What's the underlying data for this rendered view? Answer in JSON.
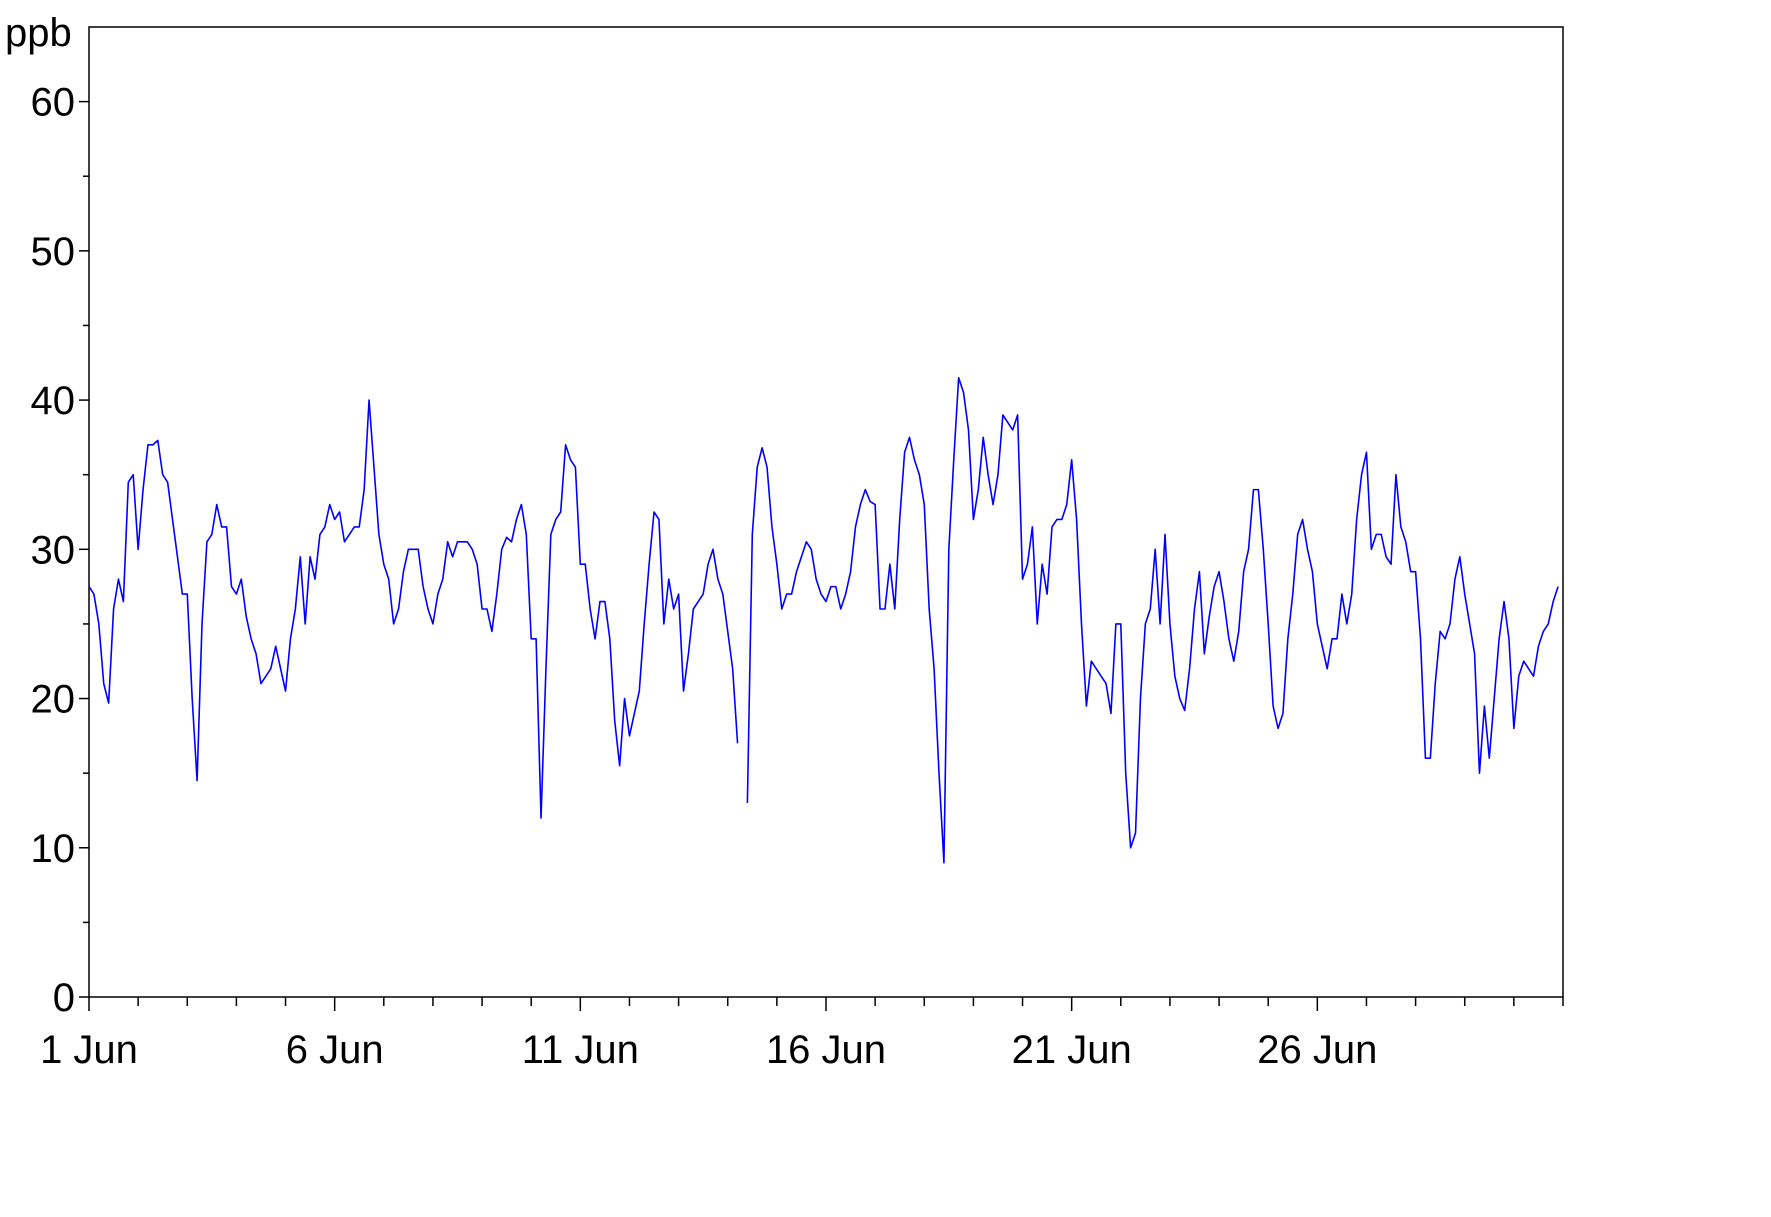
{
  "chart_data": {
    "type": "line",
    "y_label": "ppb",
    "xlim": [
      1,
      31
    ],
    "ylim": [
      0,
      65
    ],
    "xticks": [
      {
        "value": 1,
        "label": "1 Jun"
      },
      {
        "value": 6,
        "label": "6 Jun"
      },
      {
        "value": 11,
        "label": "11 Jun"
      },
      {
        "value": 16,
        "label": "16 Jun"
      },
      {
        "value": 21,
        "label": "21 Jun"
      },
      {
        "value": 26,
        "label": "26 Jun"
      }
    ],
    "x_minor_ticks": [
      2,
      3,
      4,
      5,
      7,
      8,
      9,
      10,
      12,
      13,
      14,
      15,
      17,
      18,
      19,
      20,
      22,
      23,
      24,
      25,
      27,
      28,
      29,
      30,
      31
    ],
    "yticks": [
      0,
      10,
      20,
      30,
      40,
      50,
      60
    ],
    "y_minor_ticks": [
      5,
      15,
      25,
      35,
      45,
      55
    ],
    "grid": false,
    "x": [
      1,
      1.1,
      1.2,
      1.3,
      1.4,
      1.5,
      1.6,
      1.7,
      1.8,
      1.9,
      2,
      2.1,
      2.2,
      2.3,
      2.4,
      2.5,
      2.6,
      2.7,
      2.8,
      2.9,
      3,
      3.1,
      3.2,
      3.3,
      3.4,
      3.5,
      3.6,
      3.7,
      3.8,
      3.9,
      4,
      4.1,
      4.2,
      4.3,
      4.4,
      4.5,
      4.6,
      4.7,
      4.8,
      4.9,
      5,
      5.1,
      5.2,
      5.3,
      5.4,
      5.5,
      5.6,
      5.7,
      5.8,
      5.9,
      6,
      6.1,
      6.2,
      6.3,
      6.4,
      6.5,
      6.6,
      6.7,
      6.8,
      6.9,
      7,
      7.1,
      7.2,
      7.3,
      7.4,
      7.5,
      7.6,
      7.7,
      7.8,
      7.9,
      8,
      8.1,
      8.2,
      8.3,
      8.4,
      8.5,
      8.6,
      8.7,
      8.8,
      8.9,
      9,
      9.1,
      9.2,
      9.3,
      9.4,
      9.5,
      9.6,
      9.7,
      9.8,
      9.9,
      10,
      10.1,
      10.2,
      10.3,
      10.4,
      10.5,
      10.6,
      10.7,
      10.8,
      10.9,
      11,
      11.1,
      11.2,
      11.3,
      11.4,
      11.5,
      11.6,
      11.7,
      11.8,
      11.9,
      12,
      12.1,
      12.2,
      12.3,
      12.4,
      12.5,
      12.6,
      12.7,
      12.8,
      12.9,
      13,
      13.1,
      13.2,
      13.3,
      13.4,
      13.5,
      13.6,
      13.7,
      13.8,
      13.9,
      14,
      14.1,
      14.2,
      14.3,
      14.4,
      14.5,
      14.6,
      14.7,
      14.8,
      14.9,
      15,
      15.1,
      15.2,
      15.3,
      15.4,
      15.5,
      15.6,
      15.7,
      15.8,
      15.9,
      16,
      16.1,
      16.2,
      16.3,
      16.4,
      16.5,
      16.6,
      16.7,
      16.8,
      16.9,
      17,
      17.1,
      17.2,
      17.3,
      17.4,
      17.5,
      17.6,
      17.7,
      17.8,
      17.9,
      18,
      18.1,
      18.2,
      18.3,
      18.4,
      18.5,
      18.6,
      18.7,
      18.8,
      18.9,
      19,
      19.1,
      19.2,
      19.3,
      19.4,
      19.5,
      19.6,
      19.7,
      19.8,
      19.9,
      20,
      20.1,
      20.2,
      20.3,
      20.4,
      20.5,
      20.6,
      20.7,
      20.8,
      20.9,
      21,
      21.1,
      21.2,
      21.3,
      21.4,
      21.5,
      21.6,
      21.7,
      21.8,
      21.9,
      22,
      22.1,
      22.2,
      22.3,
      22.4,
      22.5,
      22.6,
      22.7,
      22.8,
      22.9,
      23,
      23.1,
      23.2,
      23.3,
      23.4,
      23.5,
      23.6,
      23.7,
      23.8,
      23.9,
      24,
      24.1,
      24.2,
      24.3,
      24.4,
      24.5,
      24.6,
      24.7,
      24.8,
      24.9,
      25,
      25.1,
      25.2,
      25.3,
      25.4,
      25.5,
      25.6,
      25.7,
      25.8,
      25.9,
      26,
      26.1,
      26.2,
      26.3,
      26.4,
      26.5,
      26.6,
      26.7,
      26.8,
      26.9,
      27,
      27.1,
      27.2,
      27.3,
      27.4,
      27.5,
      27.6,
      27.7,
      27.8,
      27.9,
      28,
      28.1,
      28.2,
      28.3,
      28.4,
      28.5,
      28.6,
      28.7,
      28.8,
      28.9,
      29,
      29.1,
      29.2,
      29.3,
      29.4,
      29.5,
      29.6,
      29.7,
      29.8,
      29.9,
      30,
      30.1,
      30.2,
      30.3,
      30.4,
      30.5,
      30.6,
      30.7,
      30.8,
      30.9
    ],
    "series": [
      {
        "color": "#0000ff",
        "values": [
          27.5,
          27,
          25,
          21,
          19.7,
          26,
          28,
          26.5,
          34.5,
          35,
          30,
          34,
          37,
          37,
          37.3,
          35,
          34.5,
          32,
          29.5,
          27,
          27,
          20,
          14.5,
          25,
          30.5,
          31,
          33,
          31.5,
          31.5,
          27.5,
          27,
          28,
          25.5,
          24,
          23,
          21,
          21.5,
          22,
          23.5,
          22,
          20.5,
          24,
          26,
          29.5,
          25,
          29.5,
          28,
          31,
          31.5,
          33,
          32,
          32.5,
          30.5,
          31,
          31.5,
          31.5,
          34,
          40,
          35.5,
          31,
          29,
          28,
          25,
          26,
          28.5,
          30,
          30,
          30,
          27.5,
          26,
          25,
          27,
          28,
          30.5,
          29.5,
          30.5,
          30.5,
          30.5,
          30,
          29,
          26,
          26,
          24.5,
          27,
          30,
          30.8,
          30.5,
          32,
          33,
          31,
          24,
          24,
          12,
          22,
          31,
          32,
          32.5,
          37,
          36,
          35.5,
          29,
          29,
          26,
          24,
          26.5,
          26.5,
          24,
          18.5,
          15.5,
          20,
          17.5,
          19,
          20.5,
          25,
          29,
          32.5,
          32,
          25,
          28,
          26,
          27,
          20.5,
          23,
          26,
          26.5,
          27,
          29,
          30,
          28,
          27,
          24.5,
          22,
          17,
          null,
          13,
          31,
          35.5,
          36.8,
          35.5,
          31.5,
          29,
          26,
          27,
          27,
          28.5,
          29.5,
          30.5,
          30,
          28,
          27,
          26.5,
          27.5,
          27.5,
          26,
          27,
          28.5,
          31.5,
          33,
          34,
          33.2,
          33,
          26,
          26,
          29,
          26,
          32,
          36.5,
          37.5,
          36,
          35,
          33,
          26,
          22,
          15,
          9,
          30,
          36,
          41.5,
          40.5,
          38,
          32,
          34,
          37.5,
          35,
          33,
          35,
          39,
          38.5,
          38,
          39,
          28,
          29,
          31.5,
          25,
          29,
          27,
          31.5,
          32,
          32,
          33,
          36,
          32,
          25,
          19.5,
          22.5,
          22,
          21.5,
          21,
          19,
          25,
          25,
          15,
          10,
          11,
          20,
          25,
          26,
          30,
          25,
          31,
          25,
          21.5,
          20,
          19.2,
          22,
          26,
          28.5,
          23,
          25.5,
          27.5,
          28.5,
          26.5,
          24,
          22.5,
          24.5,
          28.5,
          30,
          34,
          34,
          30,
          25,
          19.5,
          18,
          19,
          24,
          27,
          31,
          32,
          30,
          28.5,
          25,
          23.5,
          22,
          24,
          24,
          27,
          25,
          27,
          32,
          35,
          36.5,
          30,
          31,
          31,
          29.5,
          29,
          35,
          31.5,
          30.5,
          28.5,
          28.5,
          24,
          16,
          16,
          21,
          24.5,
          24,
          25,
          28,
          29.5,
          27,
          25,
          23,
          15,
          19.5,
          16,
          20,
          24,
          26.5,
          24,
          18,
          21.5,
          22.5,
          22,
          21.5,
          23.5,
          24.5,
          25,
          26.5,
          27.5
        ]
      }
    ]
  }
}
